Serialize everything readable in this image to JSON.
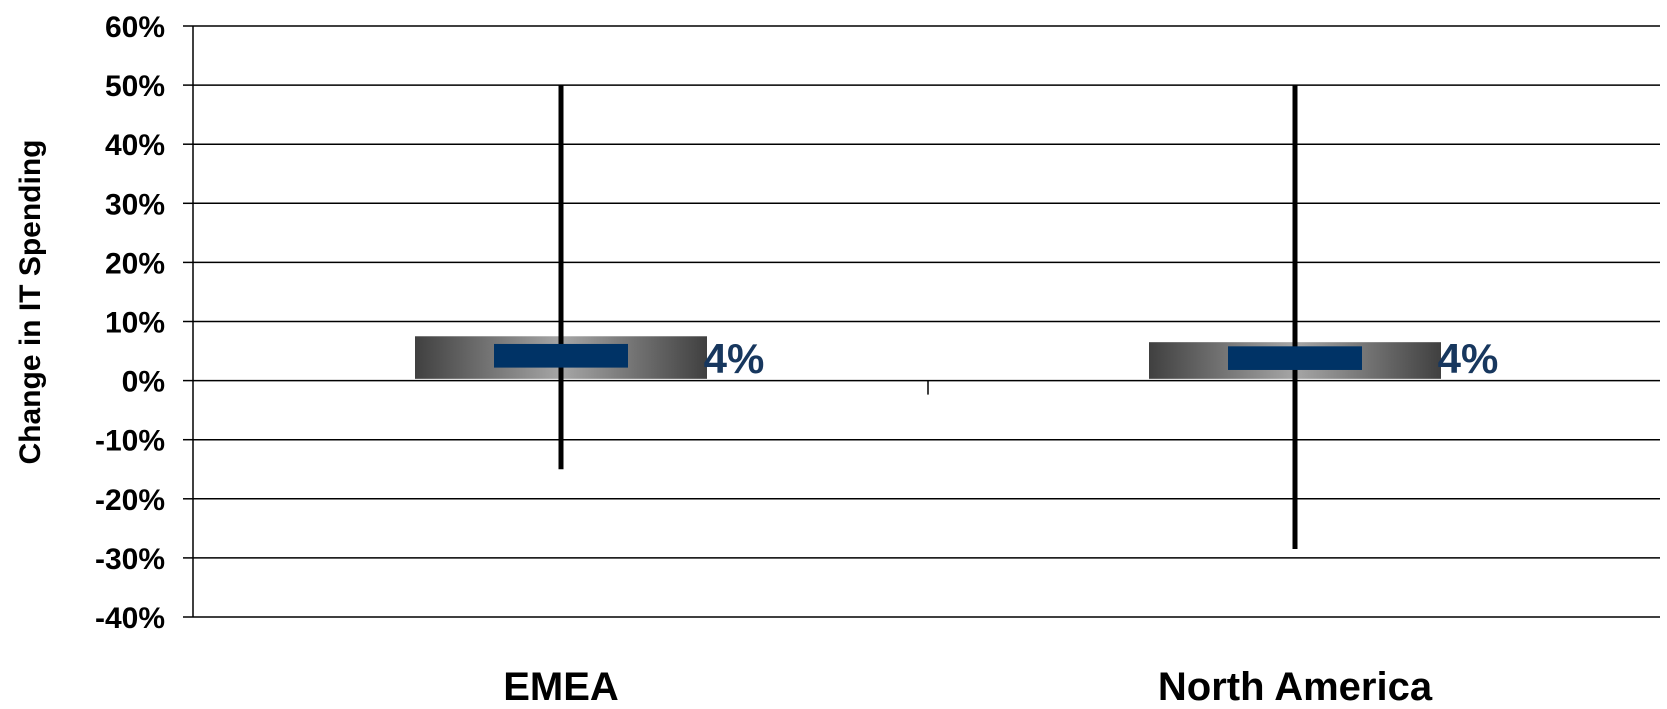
{
  "chart_data": {
    "type": "box",
    "title": "",
    "xlabel": "",
    "ylabel": "Change in IT Spending",
    "ylim": [
      -40,
      60
    ],
    "y_ticks": [
      60,
      50,
      40,
      30,
      20,
      10,
      0,
      -10,
      -20,
      -30,
      -40
    ],
    "y_tick_labels": [
      "60%",
      "50%",
      "40%",
      "30%",
      "20%",
      "10%",
      "0%",
      "-10%",
      "-20%",
      "-30%",
      "-40%"
    ],
    "grid": true,
    "categories": [
      "EMEA",
      "North America"
    ],
    "series": [
      {
        "points": [
          {
            "category": "EMEA",
            "low": -15,
            "high": 50,
            "box_low": 0.3,
            "box_high": 7.5,
            "median_low": 2.2,
            "median_high": 6.2,
            "value": 4,
            "label": "4%"
          },
          {
            "category": "North America",
            "low": -28.5,
            "high": 50,
            "box_low": 0.3,
            "box_high": 6.5,
            "median_low": 1.8,
            "median_high": 5.8,
            "value": 4,
            "label": "4%"
          }
        ]
      }
    ],
    "colors": {
      "gridline": "#000000",
      "whisker": "#000000",
      "box_dark": "#404040",
      "box_light": "#a6a6a6",
      "median": "#003366",
      "value_label": "#17375e"
    }
  }
}
